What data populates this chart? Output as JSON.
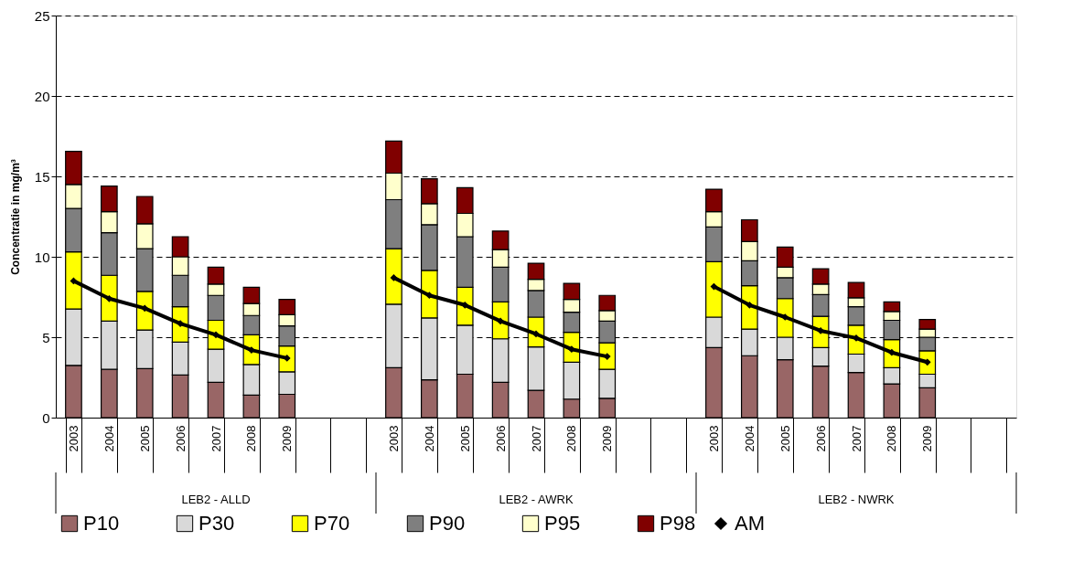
{
  "chart_data": {
    "type": "bar",
    "stacked": true,
    "ylabel": "Concentratie in mg/m³",
    "categories": [
      "2003",
      "2004",
      "2005",
      "2006",
      "2007",
      "2008",
      "2009",
      null,
      null,
      "2003",
      "2004",
      "2005",
      "2006",
      "2007",
      "2008",
      "2009",
      null,
      null,
      "2003",
      "2004",
      "2005",
      "2006",
      "2007",
      "2008",
      "2009",
      null,
      null
    ],
    "annotations": [
      "LEB2 - ALLD",
      "LEB2 - AWRK",
      "LEB2 - NWRK"
    ],
    "ylim": [
      0,
      25
    ],
    "yticks": [
      0,
      5,
      10,
      15,
      20,
      25
    ],
    "grid": "y",
    "legend": "bottom",
    "series": [
      {
        "name": "P10",
        "color": "#996666",
        "values": [
          3.25,
          3.0,
          3.05,
          2.65,
          2.2,
          1.4,
          1.45,
          null,
          null,
          3.1,
          2.35,
          2.7,
          2.2,
          1.7,
          1.15,
          1.2,
          null,
          null,
          4.35,
          3.85,
          3.6,
          3.2,
          2.8,
          2.1,
          1.85,
          null,
          null
        ]
      },
      {
        "name": "P30",
        "color": "#d9d9d9",
        "values": [
          3.5,
          3.0,
          2.4,
          2.05,
          2.05,
          1.9,
          1.4,
          null,
          null,
          3.95,
          3.85,
          3.05,
          2.7,
          2.7,
          2.3,
          1.8,
          null,
          null,
          1.9,
          1.65,
          1.4,
          1.15,
          1.15,
          1.0,
          0.85,
          null,
          null
        ]
      },
      {
        "name": "P70",
        "color": "#ffff00",
        "values": [
          3.55,
          2.85,
          2.4,
          2.2,
          1.8,
          1.85,
          1.6,
          null,
          null,
          3.45,
          2.95,
          2.35,
          2.3,
          1.85,
          1.85,
          1.65,
          null,
          null,
          3.45,
          2.7,
          2.4,
          1.95,
          1.8,
          1.75,
          1.45,
          null,
          null
        ]
      },
      {
        "name": "P90",
        "color": "#7f7f7f",
        "values": [
          2.7,
          2.65,
          2.65,
          1.95,
          1.55,
          1.2,
          1.25,
          null,
          null,
          3.05,
          2.85,
          3.15,
          2.15,
          1.65,
          1.25,
          1.35,
          null,
          null,
          2.15,
          1.55,
          1.3,
          1.35,
          1.15,
          1.2,
          0.85,
          null,
          null
        ]
      },
      {
        "name": "P95",
        "color": "#ffffcc",
        "values": [
          1.5,
          1.3,
          1.55,
          1.15,
          0.7,
          0.75,
          0.7,
          null,
          null,
          1.65,
          1.3,
          1.45,
          1.1,
          0.7,
          0.8,
          0.65,
          null,
          null,
          0.95,
          1.2,
          0.65,
          0.65,
          0.55,
          0.55,
          0.5,
          null,
          null
        ]
      },
      {
        "name": "P98",
        "color": "#800000",
        "values": [
          2.05,
          1.6,
          1.7,
          1.25,
          1.05,
          1.0,
          0.95,
          null,
          null,
          2.0,
          1.55,
          1.6,
          1.15,
          1.0,
          1.0,
          0.95,
          null,
          null,
          1.4,
          1.35,
          1.25,
          0.95,
          0.95,
          0.6,
          0.6,
          null,
          null
        ]
      },
      {
        "name": "AM",
        "type": "line",
        "marker": "diamond",
        "color": "#000000",
        "values": [
          8.5,
          7.4,
          6.8,
          5.85,
          5.15,
          4.2,
          3.7,
          null,
          null,
          8.7,
          7.6,
          7.0,
          6.0,
          5.2,
          4.25,
          3.8,
          null,
          null,
          8.15,
          7.0,
          6.25,
          5.4,
          4.95,
          4.05,
          3.45,
          null,
          null
        ]
      }
    ]
  }
}
